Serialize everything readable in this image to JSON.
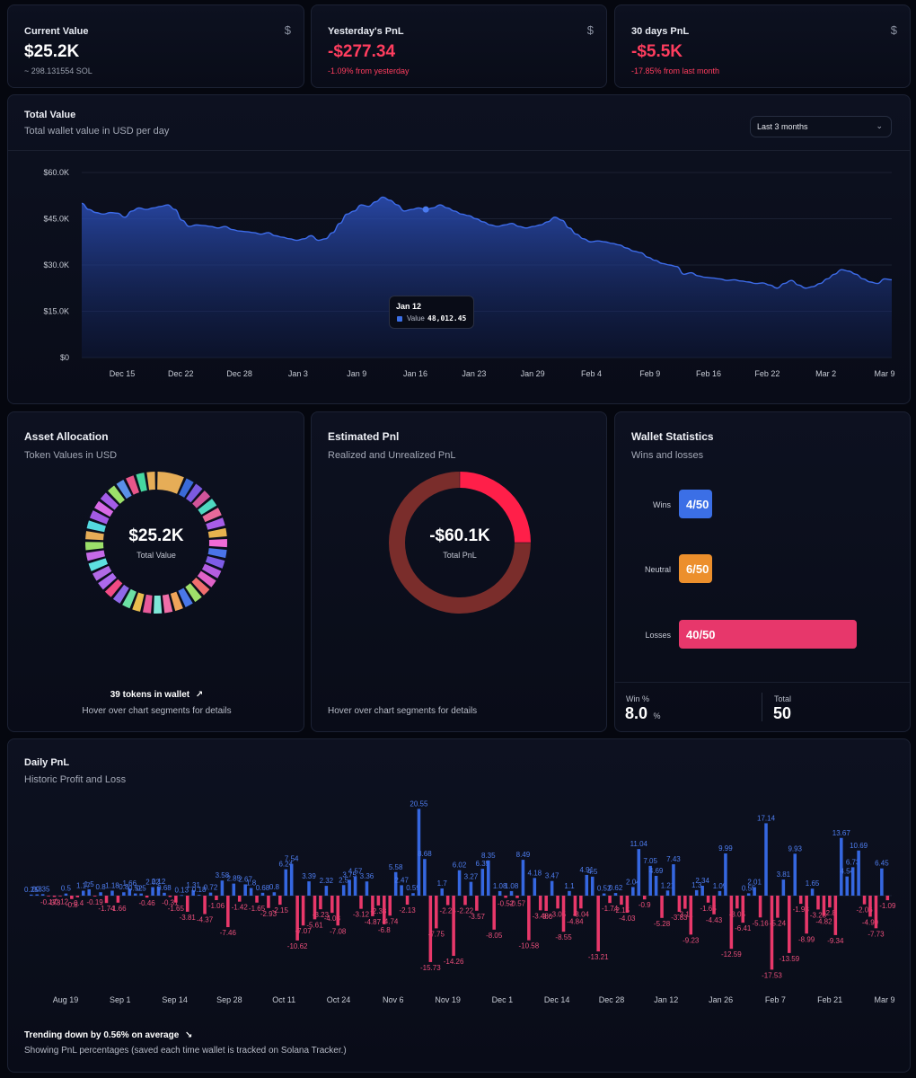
{
  "stats": {
    "current_value": {
      "label": "Current Value",
      "icon": "dollar-icon",
      "icon_char": "$",
      "value": "$25.2K",
      "sub": "~ 298.131554 SOL"
    },
    "yesterday_pnl": {
      "label": "Yesterday's PnL",
      "icon": "dollar-icon",
      "icon_char": "$",
      "value": "-$277.34",
      "sub": "-1.09% from yesterday"
    },
    "thirty_days_pnl": {
      "label": "30 days PnL",
      "icon": "dollar-icon",
      "icon_char": "$",
      "value": "-$5.5K",
      "sub": "-17.85% from last month"
    }
  },
  "total_value": {
    "title": "Total Value",
    "subtitle": "Total wallet value in USD per day",
    "range_selector": {
      "selected": "Last 3 months"
    },
    "tooltip": {
      "date": "Jan 12",
      "series": "Value",
      "value": "48,012.45"
    }
  },
  "asset_allocation": {
    "title": "Asset Allocation",
    "subtitle": "Token Values in USD",
    "center_value": "$25.2K",
    "center_label": "Total Value",
    "tokens_count": "39 tokens in wallet",
    "hint": "Hover over chart segments for details"
  },
  "estimated_pnl": {
    "title": "Estimated Pnl",
    "subtitle": "Realized and Unrealized PnL",
    "center_value": "-$60.1K",
    "center_label": "Total PnL",
    "hint": "Hover over chart segments for details"
  },
  "wallet_stats": {
    "title": "Wallet Statistics",
    "subtitle": "Wins and losses",
    "rows": [
      {
        "label": "Wins",
        "text": "4/50",
        "count": 4,
        "color": "#3b6fe6"
      },
      {
        "label": "Neutral",
        "text": "6/50",
        "count": 6,
        "color": "#ec8f2c"
      },
      {
        "label": "Losses",
        "text": "40/50",
        "count": 40,
        "color": "#e7376b"
      }
    ],
    "total_count": 50,
    "win_pct_label": "Win %",
    "win_pct_value": "8.0",
    "win_pct_unit": "%",
    "total_label": "Total",
    "total_value": "50"
  },
  "daily_pnl": {
    "title": "Daily PnL",
    "subtitle": "Historic Profit and Loss",
    "trend": "Trending down by 0.56% on average",
    "note": "Showing PnL percentages (saved each time wallet is tracked on Solana Tracker.)"
  },
  "colors": {
    "positive": "#3567e0",
    "negative": "#e8386a",
    "area": "#2a4fbf",
    "accent_red": "#ff1f49",
    "dark_red": "#7a2d2b"
  },
  "chart_data": [
    {
      "type": "area",
      "x_ticks": [
        "Dec 15",
        "Dec 22",
        "Dec 28",
        "Jan 3",
        "Jan 9",
        "Jan 16",
        "Jan 23",
        "Jan 29",
        "Feb 4",
        "Feb 9",
        "Feb 16",
        "Feb 22",
        "Mar 2",
        "Mar 9"
      ],
      "y_ticks": [
        "$0",
        "$15.0K",
        "$30.0K",
        "$45.0K",
        "$60.0K"
      ],
      "ylim": [
        0,
        60000
      ],
      "series": [
        {
          "values": [
            50000,
            48000,
            47000,
            46500,
            47000,
            46800,
            45500,
            47500,
            48500,
            48000,
            48500,
            49000,
            49500,
            48000,
            44500,
            42500,
            43000,
            42800,
            42500,
            42000,
            42500,
            41500,
            41000,
            40800,
            40500,
            40000,
            40500,
            39500,
            39000,
            38500,
            38000,
            38500,
            39500,
            38000,
            38500,
            40500,
            43500,
            46500,
            47500,
            49500,
            49000,
            50500,
            52000,
            51000,
            49500,
            47500,
            48000,
            48500,
            48012,
            48500,
            49500,
            48500,
            47500,
            46500,
            46000,
            45000,
            44000,
            43000,
            42500,
            43000,
            43500,
            42500,
            42000,
            42500,
            43000,
            44000,
            45500,
            44500,
            42000,
            40000,
            38500,
            37500,
            37800,
            37500,
            37000,
            36500,
            35500,
            34500,
            34000,
            32500,
            31500,
            30500,
            30000,
            29500,
            27000,
            27500,
            26500,
            26000,
            25800,
            25500,
            25000,
            25200,
            24800,
            24500,
            24000,
            24200,
            23500,
            22500,
            24000,
            25000,
            23500,
            22500,
            23000,
            24000,
            25500,
            27000,
            28500,
            28000,
            27000,
            25500,
            24500,
            24000,
            25500,
            25200
          ]
        }
      ]
    },
    {
      "type": "pie",
      "title": "",
      "slices": [
        {
          "value": 3.0,
          "color": "#e6ad57"
        },
        {
          "value": 1.1,
          "color": "#3a6ad8"
        },
        {
          "value": 1.1,
          "color": "#7c5ae0"
        },
        {
          "value": 1.1,
          "color": "#d1549a"
        },
        {
          "value": 1.1,
          "color": "#4ed8c0"
        },
        {
          "value": 1.1,
          "color": "#e86a9a"
        },
        {
          "value": 1.1,
          "color": "#a75de8"
        },
        {
          "value": 1.1,
          "color": "#e8b24e"
        },
        {
          "value": 1.1,
          "color": "#f06bd6"
        },
        {
          "value": 1.1,
          "color": "#4a74e8"
        },
        {
          "value": 1.1,
          "color": "#7e5ce6"
        },
        {
          "value": 1.1,
          "color": "#b45de0"
        },
        {
          "value": 1.1,
          "color": "#e062c8"
        },
        {
          "value": 1.1,
          "color": "#f06e6e"
        },
        {
          "value": 1.1,
          "color": "#9fe06a"
        },
        {
          "value": 1.1,
          "color": "#4a78e8"
        },
        {
          "value": 1.1,
          "color": "#f0a45a"
        },
        {
          "value": 1.1,
          "color": "#f06ea8"
        },
        {
          "value": 1.1,
          "color": "#7ee8d8"
        },
        {
          "value": 1.1,
          "color": "#e85a9a"
        },
        {
          "value": 1.1,
          "color": "#e8bd4e"
        },
        {
          "value": 1.1,
          "color": "#6ce0a4"
        },
        {
          "value": 1.1,
          "color": "#8f68e8"
        },
        {
          "value": 1.1,
          "color": "#f24a84"
        },
        {
          "value": 1.1,
          "color": "#ad68ee"
        },
        {
          "value": 1.1,
          "color": "#b16ae6"
        },
        {
          "value": 1.1,
          "color": "#5ee0e0"
        },
        {
          "value": 1.1,
          "color": "#c56ae8"
        },
        {
          "value": 1.1,
          "color": "#9ce06a"
        },
        {
          "value": 1.1,
          "color": "#e6ad57"
        },
        {
          "value": 1.1,
          "color": "#54d8e0"
        },
        {
          "value": 1.1,
          "color": "#a35ae6"
        },
        {
          "value": 1.1,
          "color": "#d86ae6"
        },
        {
          "value": 1.1,
          "color": "#a45de8"
        },
        {
          "value": 1.1,
          "color": "#9ce06a"
        },
        {
          "value": 1.1,
          "color": "#5a90e8"
        },
        {
          "value": 1.1,
          "color": "#e8568a"
        },
        {
          "value": 1.1,
          "color": "#46d8a0"
        },
        {
          "value": 1.1,
          "color": "#e6ad57"
        }
      ]
    },
    {
      "type": "pie",
      "title": "",
      "slices": [
        {
          "value": 25,
          "color": "#ff1f49"
        },
        {
          "value": 75,
          "color": "#7a2d2b"
        }
      ]
    },
    {
      "type": "bar",
      "x_ticks": [
        "Aug 19",
        "Sep 1",
        "Sep 14",
        "Sep 28",
        "Oct 11",
        "Oct 24",
        "Nov 6",
        "Nov 19",
        "Dec 1",
        "Dec 14",
        "Dec 28",
        "Jan 12",
        "Jan 26",
        "Feb 7",
        "Feb 21",
        "Mar 9"
      ],
      "values": [
        0.25,
        0.3,
        0.35,
        -0.17,
        -0.3,
        -0.12,
        0.5,
        -0.8,
        -0.4,
        1.17,
        1.5,
        -0.19,
        0.8,
        -1.74,
        1.18,
        -1.66,
        0.8,
        1.66,
        0.52,
        0.5,
        -0.46,
        2.02,
        2.12,
        0.68,
        -0.31,
        -1.65,
        0.13,
        -3.81,
        1.31,
        0.18,
        -4.37,
        0.72,
        -1.06,
        3.58,
        -7.46,
        2.85,
        -1.42,
        2.67,
        1.8,
        -1.65,
        0.68,
        -2.93,
        0.8,
        -2.15,
        6.24,
        7.54,
        -10.62,
        -7.07,
        3.39,
        -5.61,
        -3.23,
        2.32,
        -4.08,
        -7.08,
        2.5,
        3.75,
        4.57,
        -3.12,
        3.36,
        -4.87,
        -2.33,
        -6.8,
        -4.74,
        5.58,
        2.47,
        -2.13,
        0.59,
        20.55,
        8.68,
        -15.73,
        -7.75,
        1.7,
        -2.24,
        -14.26,
        6.02,
        -2.22,
        3.27,
        -3.57,
        6.35,
        8.35,
        -8.05,
        1.08,
        -0.52,
        1.08,
        -0.57,
        8.49,
        -10.58,
        4.18,
        -3.48,
        -3.6,
        3.47,
        -3.05,
        -8.55,
        1.1,
        -4.84,
        -3.04,
        4.91,
        4.5,
        -13.21,
        0.52,
        -1.74,
        0.62,
        -2.15,
        -4.03,
        2.04,
        11.04,
        -0.9,
        7.05,
        4.69,
        -5.28,
        1.21,
        7.43,
        -3.83,
        -3.11,
        -9.23,
        1.3,
        2.34,
        -1.65,
        -4.43,
        1.09,
        9.99,
        -12.59,
        -3.05,
        -6.41,
        0.55,
        2.01,
        -5.16,
        17.14,
        -17.53,
        -5.24,
        3.81,
        -13.59,
        9.93,
        -1.93,
        -8.99,
        1.65,
        -3.28,
        -4.82,
        -2.8,
        -9.34,
        13.67,
        4.54,
        6.73,
        10.69,
        -2.06,
        -4.99,
        -7.73,
        6.45,
        -1.09
      ]
    }
  ]
}
